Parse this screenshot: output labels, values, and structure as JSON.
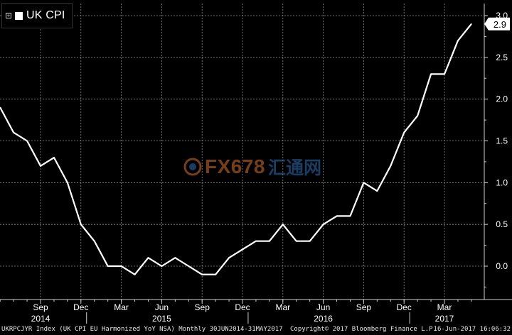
{
  "legend": {
    "toggle_glyph": "+",
    "series_label": "UK CPI"
  },
  "watermark": {
    "text": "FX678",
    "cn_text": "汇通网"
  },
  "last_value_label": "2.9",
  "footer": {
    "index_text": "UKRPCJYR Index (UK CPI EU Harmonized YoY NSA)  Monthly 30JUN2014-31MAY2017",
    "copyright": "Copyright© 2017 Bloomberg Finance L.P.",
    "timestamp": "16-Jun-2017 16:06:32"
  },
  "colors": {
    "background": "#000000",
    "line": "#ffffff",
    "grid": "#8a8a8a",
    "axis_bg": "#000000",
    "tick_label": "#ffffff"
  },
  "chart_data": {
    "type": "line",
    "title": "",
    "xlabel": "",
    "ylabel": "",
    "ylim": [
      -0.4,
      3.0
    ],
    "y_ticks": [
      "3.0",
      "2.5",
      "2.0",
      "1.5",
      "1.0",
      "0.5",
      "0.0"
    ],
    "grid": true,
    "legend_position": "top-left",
    "x": [
      "2014-06",
      "2014-07",
      "2014-08",
      "2014-09",
      "2014-10",
      "2014-11",
      "2014-12",
      "2015-01",
      "2015-02",
      "2015-03",
      "2015-04",
      "2015-05",
      "2015-06",
      "2015-07",
      "2015-08",
      "2015-09",
      "2015-10",
      "2015-11",
      "2015-12",
      "2016-01",
      "2016-02",
      "2016-03",
      "2016-04",
      "2016-05",
      "2016-06",
      "2016-07",
      "2016-08",
      "2016-09",
      "2016-10",
      "2016-11",
      "2016-12",
      "2017-01",
      "2017-02",
      "2017-03",
      "2017-04",
      "2017-05"
    ],
    "series": [
      {
        "name": "UK CPI",
        "values": [
          1.9,
          1.6,
          1.5,
          1.2,
          1.3,
          1.0,
          0.5,
          0.3,
          0.0,
          0.0,
          -0.1,
          0.1,
          0.0,
          0.1,
          0.0,
          -0.1,
          -0.1,
          0.1,
          0.2,
          0.3,
          0.3,
          0.5,
          0.3,
          0.3,
          0.5,
          0.6,
          0.6,
          1.0,
          0.9,
          1.2,
          1.6,
          1.8,
          2.3,
          2.3,
          2.7,
          2.9
        ]
      }
    ],
    "month_ticks": [
      {
        "label": "Sep",
        "date": "2014-09",
        "year": "2014"
      },
      {
        "label": "Dec",
        "date": "2014-12",
        "year": ""
      },
      {
        "label": "Mar",
        "date": "2015-03",
        "year": ""
      },
      {
        "label": "Jun",
        "date": "2015-06",
        "year": "2015"
      },
      {
        "label": "Sep",
        "date": "2015-09",
        "year": ""
      },
      {
        "label": "Dec",
        "date": "2015-12",
        "year": ""
      },
      {
        "label": "Mar",
        "date": "2016-03",
        "year": ""
      },
      {
        "label": "Jun",
        "date": "2016-06",
        "year": "2016"
      },
      {
        "label": "Sep",
        "date": "2016-09",
        "year": ""
      },
      {
        "label": "Dec",
        "date": "2016-12",
        "year": ""
      },
      {
        "label": "Mar",
        "date": "2017-03",
        "year": "2017"
      }
    ]
  }
}
